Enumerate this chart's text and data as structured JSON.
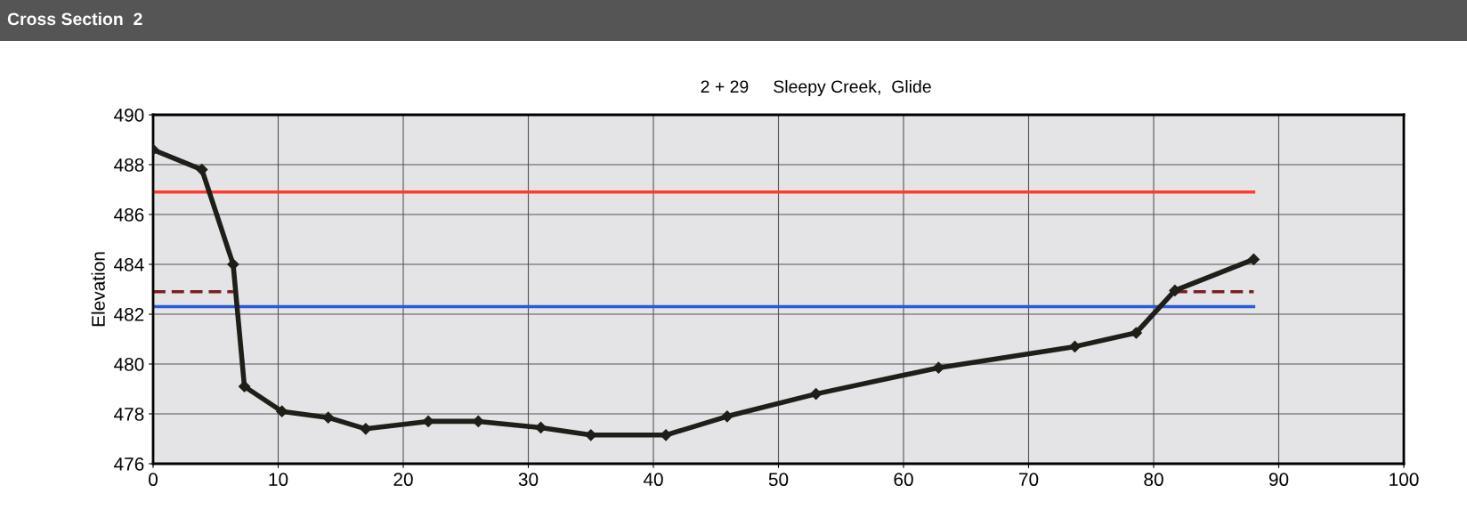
{
  "chart_data": {
    "type": "line",
    "title": "Cross Section  2",
    "subtitle": "2 + 29     Sleepy Creek,  Glide",
    "ylabel": "Elevation",
    "xlim": [
      0,
      100
    ],
    "xticks": [
      0,
      10,
      20,
      30,
      40,
      50,
      60,
      70,
      80,
      90,
      100
    ],
    "ylim": [
      476,
      490
    ],
    "yticks": [
      476,
      478,
      480,
      482,
      484,
      486,
      488,
      490
    ],
    "grid": true,
    "series": [
      {
        "color": "#ff3b30",
        "x": [
          0,
          88
        ],
        "values": [
          486.9,
          486.9
        ],
        "marker": "none",
        "line_style": "solid"
      },
      {
        "color": "#2a5bd7",
        "x": [
          0,
          88
        ],
        "values": [
          482.3,
          482.3
        ],
        "marker": "none",
        "line_style": "solid"
      },
      {
        "color": "#7a1f1f",
        "x": [
          0,
          6.4
        ],
        "values": [
          482.9,
          482.9
        ],
        "marker": "none",
        "line_style": "dashed"
      },
      {
        "color": "#7a1f1f",
        "x": [
          81.7,
          88
        ],
        "values": [
          482.9,
          482.9
        ],
        "marker": "none",
        "line_style": "dashed"
      },
      {
        "color": "#1f1f1a",
        "x": [
          0,
          3.9,
          6.4,
          7.3,
          10.3,
          14.0,
          17.0,
          22.0,
          26.0,
          31.0,
          35.0,
          41.0,
          45.9,
          53.0,
          62.8,
          73.7,
          78.6,
          81.7,
          88.0
        ],
        "values": [
          488.6,
          487.8,
          484.0,
          479.1,
          478.1,
          477.85,
          477.4,
          477.7,
          477.7,
          477.45,
          477.15,
          477.15,
          477.9,
          478.8,
          479.85,
          480.7,
          481.25,
          482.95,
          484.2
        ],
        "marker": "diamond",
        "line_style": "solid"
      }
    ]
  }
}
